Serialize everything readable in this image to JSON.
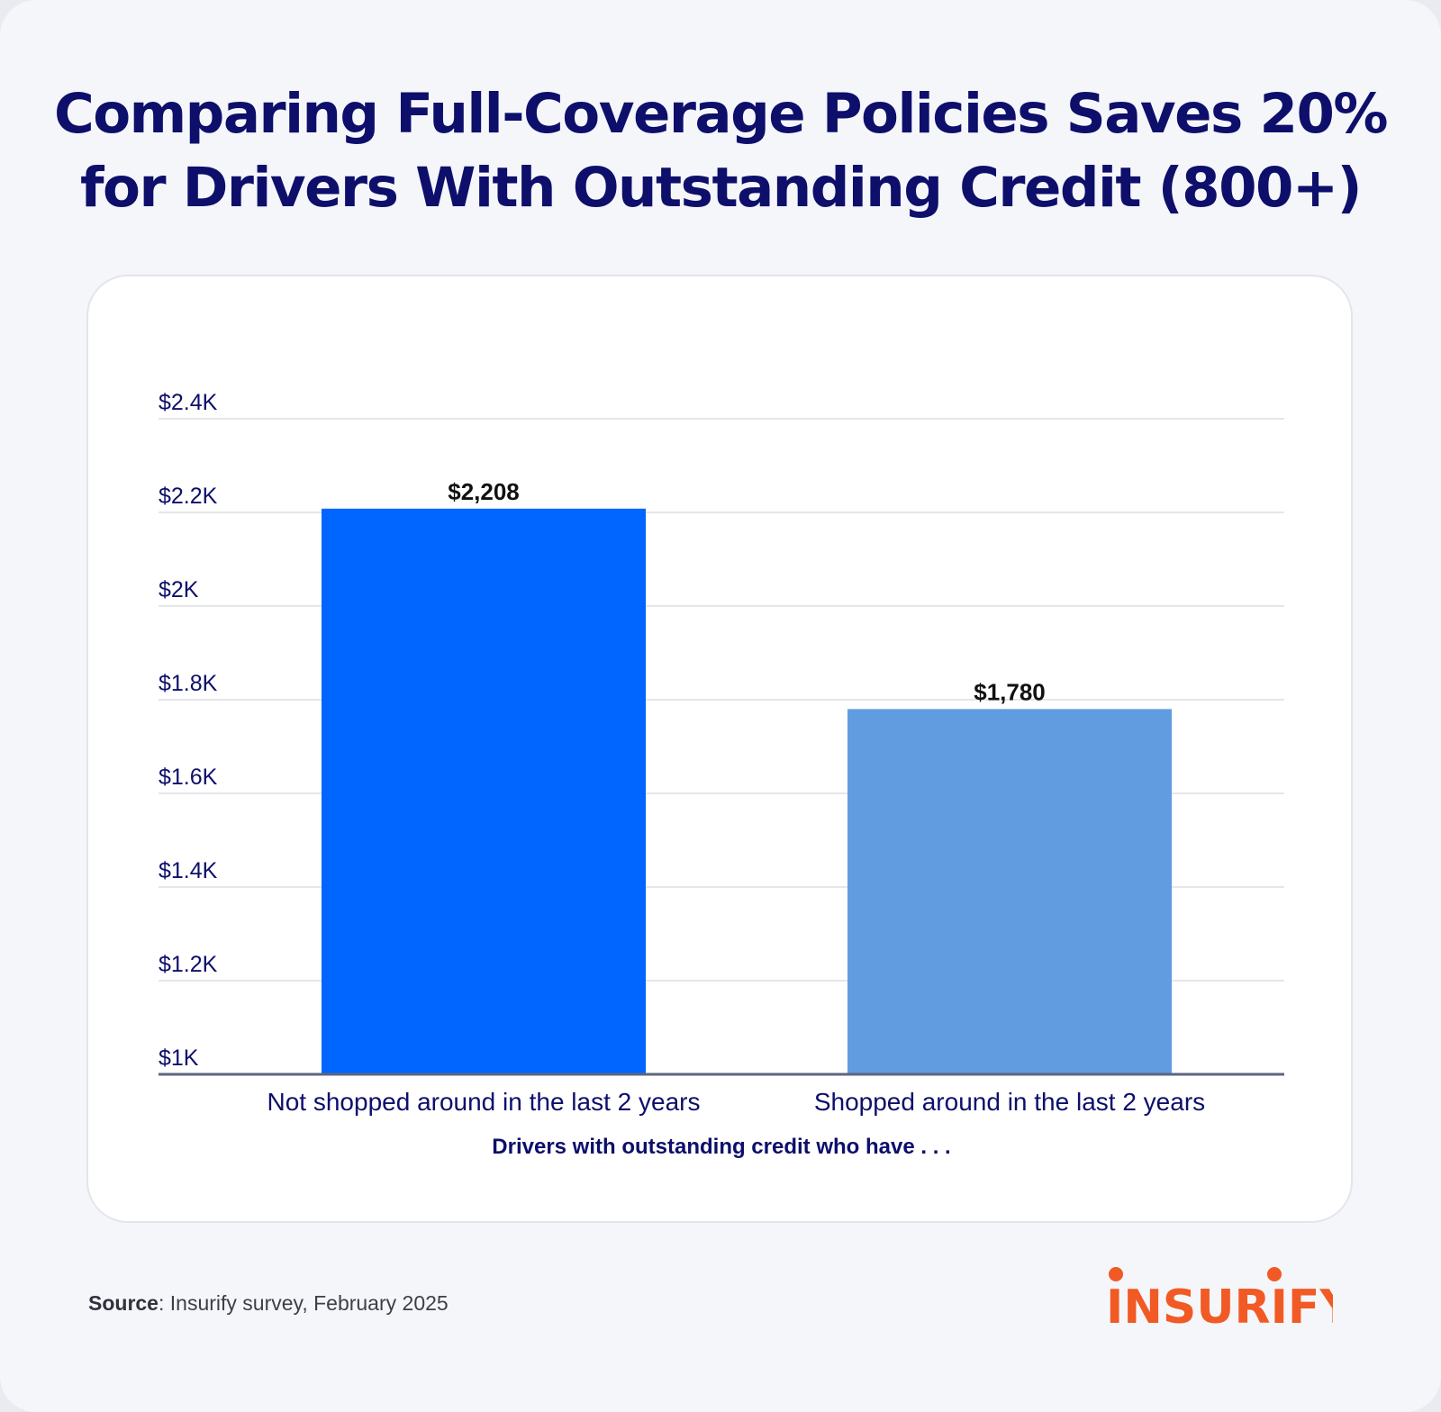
{
  "title": {
    "line1": "Comparing Full-Coverage Policies Saves 20%",
    "line2": "for Drivers With Outstanding Credit (800+)"
  },
  "source": {
    "label": "Source",
    "text": ": Insurify survey, February 2025"
  },
  "logo": {
    "text": "INSURIFY",
    "color": "#f15a24"
  },
  "chart_data": {
    "type": "bar",
    "categories": [
      "Not shopped around in the last 2 years",
      "Shopped around in the last 2 years"
    ],
    "values": [
      2208,
      1780
    ],
    "value_labels": [
      "$2,208",
      "$1,780"
    ],
    "bar_colors": [
      "#0066ff",
      "#619ce0"
    ],
    "xlabel": "Drivers with outstanding credit who have . . .",
    "ylabel": "",
    "ylim": [
      1000,
      2400
    ],
    "yticks": [
      1000,
      1200,
      1400,
      1600,
      1800,
      2000,
      2200,
      2400
    ],
    "ytick_labels": [
      "$1K",
      "$1.2K",
      "$1.4K",
      "$1.6K",
      "$1.8K",
      "$2K",
      "$2.2K",
      "$2.4K"
    ],
    "grid": true,
    "legend": "none"
  }
}
